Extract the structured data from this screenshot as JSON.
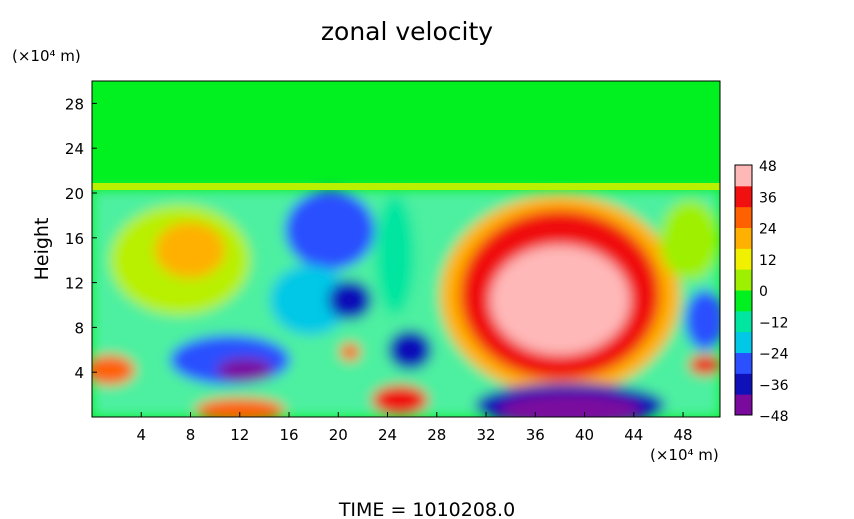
{
  "chart_data": {
    "type": "heatmap",
    "title": "zonal velocity",
    "xlabel": "",
    "ylabel": "Height",
    "x_unit": "(×10⁴ m)",
    "y_unit": "(×10⁴ m)",
    "x_ticks": [
      4,
      8,
      12,
      16,
      20,
      24,
      28,
      32,
      36,
      40,
      44,
      48
    ],
    "y_ticks": [
      4,
      8,
      12,
      16,
      20,
      24,
      28
    ],
    "xlim": [
      0,
      51
    ],
    "ylim": [
      0,
      30
    ],
    "colorbar": {
      "ticks": [
        48,
        36,
        24,
        12,
        0,
        -12,
        -24,
        -36,
        -48
      ],
      "range": [
        -48,
        48
      ],
      "colors": [
        "#7a0a9e",
        "#1010b8",
        "#2a50ff",
        "#00c8e6",
        "#00e6a0",
        "#00f020",
        "#9ef000",
        "#f0f000",
        "#ffb000",
        "#ff6000",
        "#f01010",
        "#ffb8b8"
      ]
    },
    "field_description_levels": {
      "upper_layer_above_20": 0
    },
    "footer": "TIME  =  1010208.0"
  }
}
